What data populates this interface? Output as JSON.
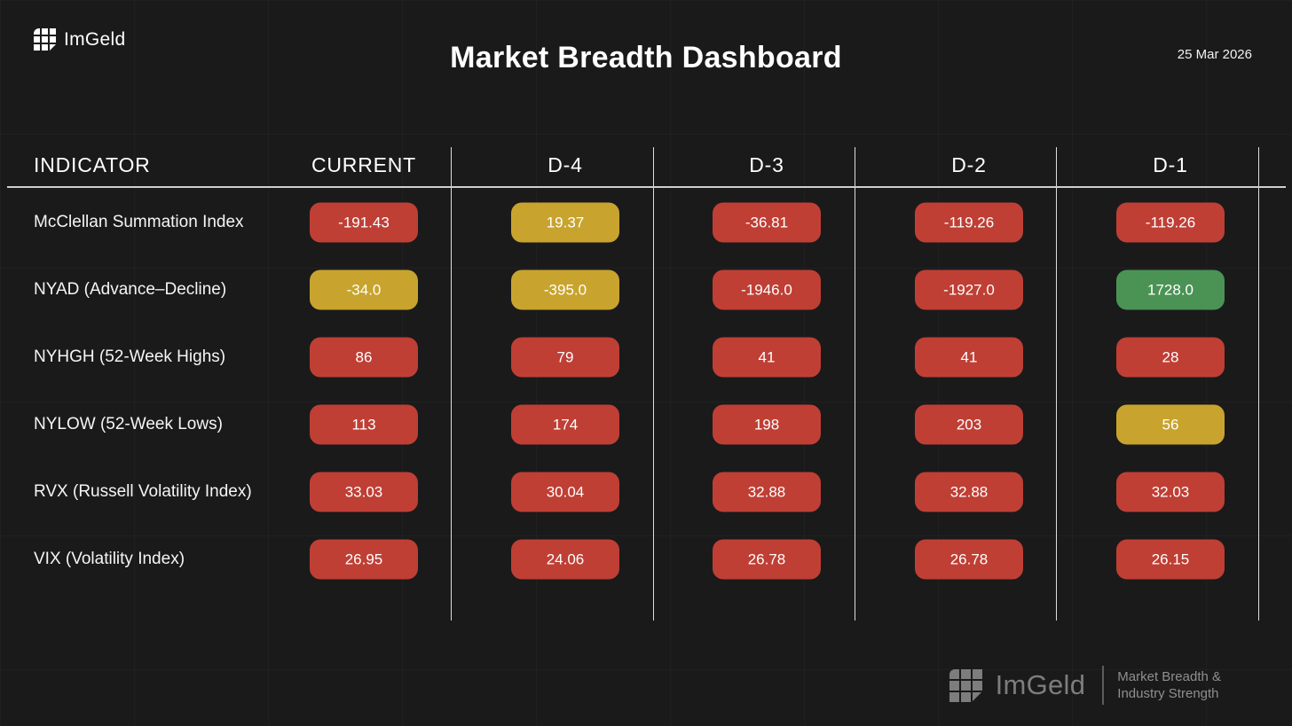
{
  "header": {
    "logo_text": "ImGeld",
    "title": "Market Breadth Dashboard",
    "date": "25 Mar 2026"
  },
  "chart_data": {
    "type": "table",
    "title": "Market Breadth Dashboard",
    "columns": [
      "INDICATOR",
      "CURRENT",
      "D-4",
      "D-3",
      "D-2",
      "D-1"
    ],
    "rows": [
      {
        "indicator": "McClellan Summation Index",
        "values": [
          {
            "text": "-191.43",
            "status": "red"
          },
          {
            "text": "19.37",
            "status": "yellow"
          },
          {
            "text": "-36.81",
            "status": "red"
          },
          {
            "text": "-119.26",
            "status": "red"
          },
          {
            "text": "-119.26",
            "status": "red"
          }
        ]
      },
      {
        "indicator": "NYAD (Advance–Decline)",
        "values": [
          {
            "text": "-34.0",
            "status": "yellow"
          },
          {
            "text": "-395.0",
            "status": "yellow"
          },
          {
            "text": "-1946.0",
            "status": "red"
          },
          {
            "text": "-1927.0",
            "status": "red"
          },
          {
            "text": "1728.0",
            "status": "green"
          }
        ]
      },
      {
        "indicator": "NYHGH (52-Week Highs)",
        "values": [
          {
            "text": "86",
            "status": "red"
          },
          {
            "text": "79",
            "status": "red"
          },
          {
            "text": "41",
            "status": "red"
          },
          {
            "text": "41",
            "status": "red"
          },
          {
            "text": "28",
            "status": "red"
          }
        ]
      },
      {
        "indicator": "NYLOW (52-Week Lows)",
        "values": [
          {
            "text": "113",
            "status": "red"
          },
          {
            "text": "174",
            "status": "red"
          },
          {
            "text": "198",
            "status": "red"
          },
          {
            "text": "203",
            "status": "red"
          },
          {
            "text": "56",
            "status": "yellow"
          }
        ]
      },
      {
        "indicator": "RVX (Russell Volatility Index)",
        "values": [
          {
            "text": "33.03",
            "status": "red"
          },
          {
            "text": "30.04",
            "status": "red"
          },
          {
            "text": "32.88",
            "status": "red"
          },
          {
            "text": "32.88",
            "status": "red"
          },
          {
            "text": "32.03",
            "status": "red"
          }
        ]
      },
      {
        "indicator": "VIX (Volatility Index)",
        "values": [
          {
            "text": "26.95",
            "status": "red"
          },
          {
            "text": "24.06",
            "status": "red"
          },
          {
            "text": "26.78",
            "status": "red"
          },
          {
            "text": "26.78",
            "status": "red"
          },
          {
            "text": "26.15",
            "status": "red"
          }
        ]
      }
    ],
    "status_colors": {
      "red": "#bf3f35",
      "yellow": "#c8a42e",
      "green": "#4a9355"
    }
  },
  "footer": {
    "logo_text": "ImGeld",
    "tagline_line1": "Market Breadth &",
    "tagline_line2": "Industry Strength"
  }
}
